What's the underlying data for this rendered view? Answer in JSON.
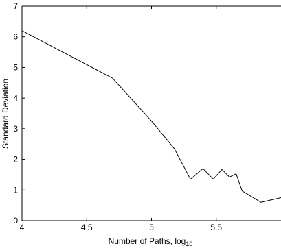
{
  "chart_data": {
    "type": "line",
    "title": "",
    "xlabel": "Number of Paths, log",
    "xlabel_sub": "10",
    "ylabel": "Standard Deviation",
    "xlim": [
      4,
      6
    ],
    "ylim": [
      0,
      7
    ],
    "xticks": [
      4,
      4.5,
      5,
      5.5
    ],
    "xtick_labels": [
      "4",
      "4.5",
      "5",
      "5.5"
    ],
    "yticks": [
      0,
      1,
      2,
      3,
      4,
      5,
      6,
      7
    ],
    "ytick_labels": [
      "0",
      "1",
      "2",
      "3",
      "4",
      "5",
      "6",
      "7"
    ],
    "grid": false,
    "line_color": "#000000",
    "series": [
      {
        "x": [
          4.0,
          4.699,
          5.0,
          5.176,
          5.301,
          5.398,
          5.477,
          5.544,
          5.602,
          5.653,
          5.699,
          5.845,
          6.0
        ],
        "y": [
          6.2,
          4.65,
          3.25,
          2.35,
          1.35,
          1.7,
          1.35,
          1.67,
          1.42,
          1.53,
          0.97,
          0.6,
          0.75
        ]
      }
    ]
  }
}
